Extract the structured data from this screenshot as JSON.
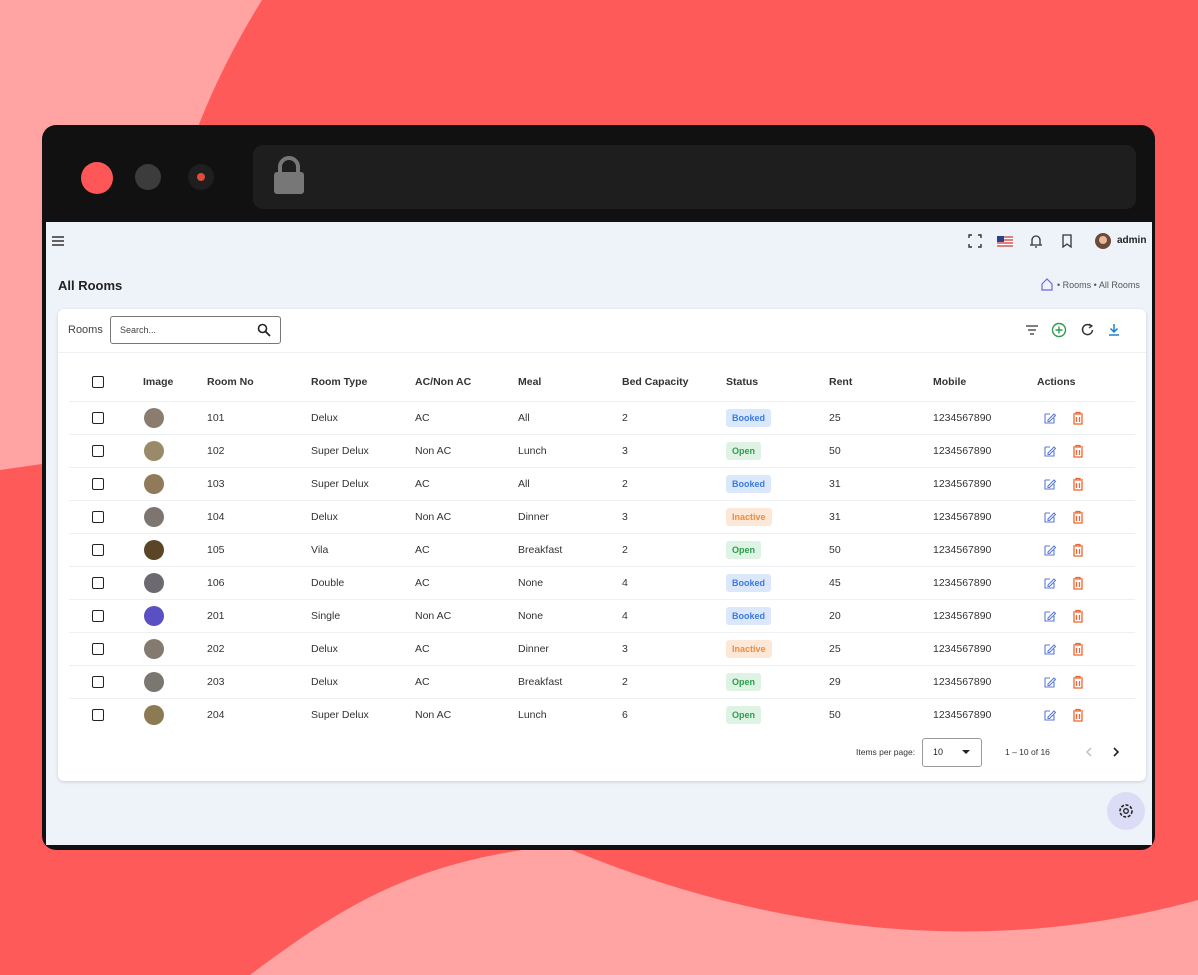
{
  "header": {
    "user": "admin"
  },
  "page": {
    "title": "All Rooms",
    "breadcrumb": [
      "Rooms",
      "All Rooms"
    ]
  },
  "toolbar": {
    "label": "Rooms",
    "search_placeholder": "Search..."
  },
  "table": {
    "columns": [
      "Image",
      "Room No",
      "Room Type",
      "AC/Non AC",
      "Meal",
      "Bed Capacity",
      "Status",
      "Rent",
      "Mobile",
      "Actions"
    ],
    "rows": [
      [
        "101",
        "Delux",
        "AC",
        "All",
        2,
        "Booked",
        25,
        "1234567890"
      ],
      [
        "102",
        "Super Delux",
        "Non AC",
        "Lunch",
        3,
        "Open",
        50,
        "1234567890"
      ],
      [
        "103",
        "Super Delux",
        "AC",
        "All",
        2,
        "Booked",
        31,
        "1234567890"
      ],
      [
        "104",
        "Delux",
        "Non AC",
        "Dinner",
        3,
        "Inactive",
        31,
        "1234567890"
      ],
      [
        "105",
        "Vila",
        "AC",
        "Breakfast",
        2,
        "Open",
        50,
        "1234567890"
      ],
      [
        "106",
        "Double",
        "AC",
        "None",
        4,
        "Booked",
        45,
        "1234567890"
      ],
      [
        "201",
        "Single",
        "Non AC",
        "None",
        4,
        "Booked",
        20,
        "1234567890"
      ],
      [
        "202",
        "Delux",
        "AC",
        "Dinner",
        3,
        "Inactive",
        25,
        "1234567890"
      ],
      [
        "203",
        "Delux",
        "AC",
        "Breakfast",
        2,
        "Open",
        29,
        "1234567890"
      ],
      [
        "204",
        "Super Delux",
        "Non AC",
        "Lunch",
        6,
        "Open",
        50,
        "1234567890"
      ]
    ]
  },
  "pagination": {
    "items_per_page_label": "Items per page:",
    "page_size": 10,
    "range": "1 – 10 of 16"
  }
}
